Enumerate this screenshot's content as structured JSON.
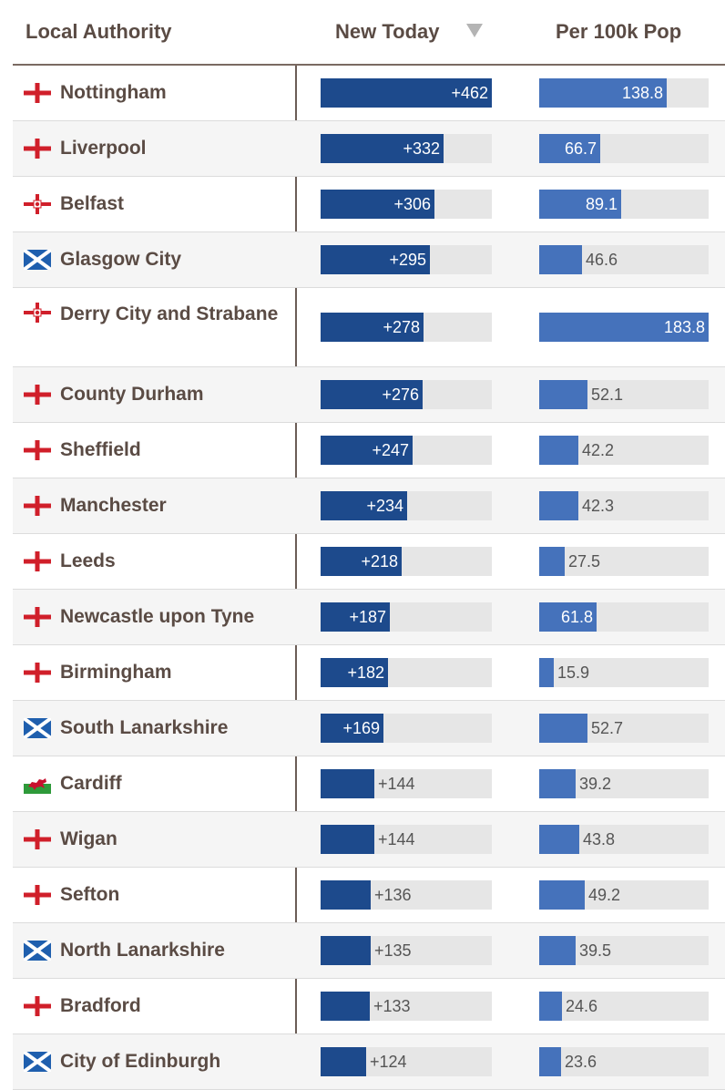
{
  "headers": {
    "name": "Local Authority",
    "new_today": "New Today",
    "per_100k": "Per 100k Pop",
    "sort_icon": "sort-descending-triangle"
  },
  "colors": {
    "new_bar": "#1d4a8c",
    "per_bar": "#4572bb",
    "track": "#e6e6e6",
    "text": "#5a4b44",
    "england_cross": "#d01f2a",
    "scotland_blue": "#1f5fae",
    "wales_green": "#2e9a3a",
    "wales_red": "#c8102e"
  },
  "chart_data": {
    "type": "table",
    "columns": [
      "Local Authority",
      "New Today",
      "Per 100k Pop"
    ],
    "new_max": 462,
    "per_max": 183.8,
    "rows": [
      {
        "name": "Nottingham",
        "flag": "england",
        "new": 462,
        "new_label": "+462",
        "per": 138.8,
        "per_label": "138.8"
      },
      {
        "name": "Liverpool",
        "flag": "england",
        "new": 332,
        "new_label": "+332",
        "per": 66.7,
        "per_label": "66.7"
      },
      {
        "name": "Belfast",
        "flag": "northern-ireland",
        "new": 306,
        "new_label": "+306",
        "per": 89.1,
        "per_label": "89.1"
      },
      {
        "name": "Glasgow City",
        "flag": "scotland",
        "new": 295,
        "new_label": "+295",
        "per": 46.6,
        "per_label": "46.6"
      },
      {
        "name": "Derry City and Strabane",
        "flag": "northern-ireland",
        "new": 278,
        "new_label": "+278",
        "per": 183.8,
        "per_label": "183.8"
      },
      {
        "name": "County Durham",
        "flag": "england",
        "new": 276,
        "new_label": "+276",
        "per": 52.1,
        "per_label": "52.1"
      },
      {
        "name": "Sheffield",
        "flag": "england",
        "new": 247,
        "new_label": "+247",
        "per": 42.2,
        "per_label": "42.2"
      },
      {
        "name": "Manchester",
        "flag": "england",
        "new": 234,
        "new_label": "+234",
        "per": 42.3,
        "per_label": "42.3"
      },
      {
        "name": "Leeds",
        "flag": "england",
        "new": 218,
        "new_label": "+218",
        "per": 27.5,
        "per_label": "27.5"
      },
      {
        "name": "Newcastle upon Tyne",
        "flag": "england",
        "new": 187,
        "new_label": "+187",
        "per": 61.8,
        "per_label": "61.8"
      },
      {
        "name": "Birmingham",
        "flag": "england",
        "new": 182,
        "new_label": "+182",
        "per": 15.9,
        "per_label": "15.9"
      },
      {
        "name": "South Lanarkshire",
        "flag": "scotland",
        "new": 169,
        "new_label": "+169",
        "per": 52.7,
        "per_label": "52.7"
      },
      {
        "name": "Cardiff",
        "flag": "wales",
        "new": 144,
        "new_label": "+144",
        "per": 39.2,
        "per_label": "39.2"
      },
      {
        "name": "Wigan",
        "flag": "england",
        "new": 144,
        "new_label": "+144",
        "per": 43.8,
        "per_label": "43.8"
      },
      {
        "name": "Sefton",
        "flag": "england",
        "new": 136,
        "new_label": "+136",
        "per": 49.2,
        "per_label": "49.2"
      },
      {
        "name": "North Lanarkshire",
        "flag": "scotland",
        "new": 135,
        "new_label": "+135",
        "per": 39.5,
        "per_label": "39.5"
      },
      {
        "name": "Bradford",
        "flag": "england",
        "new": 133,
        "new_label": "+133",
        "per": 24.6,
        "per_label": "24.6"
      },
      {
        "name": "City of Edinburgh",
        "flag": "scotland",
        "new": 124,
        "new_label": "+124",
        "per": 23.6,
        "per_label": "23.6"
      }
    ]
  }
}
